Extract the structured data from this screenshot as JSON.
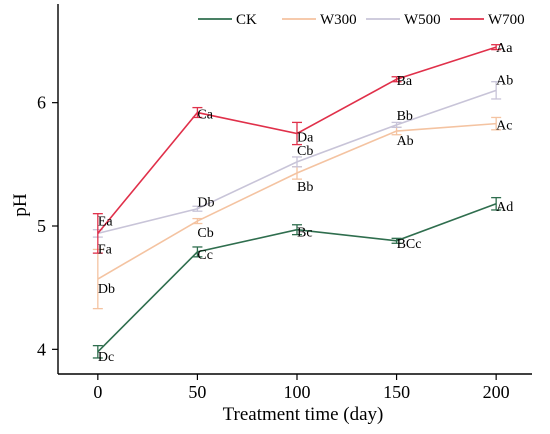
{
  "chart_data": {
    "type": "line",
    "title": "",
    "xlabel": "Treatment time (day)",
    "ylabel": "pH",
    "x": [
      0,
      50,
      100,
      150,
      200
    ],
    "xlim": [
      -20,
      218
    ],
    "ylim": [
      3.8,
      6.8
    ],
    "xticks": [
      0,
      50,
      100,
      150,
      200
    ],
    "yticks": [
      4,
      5,
      6
    ],
    "grid": false,
    "legend_position": "top",
    "series": [
      {
        "name": "CK",
        "color": "#2f6e4e",
        "values": [
          3.98,
          4.79,
          4.97,
          4.88,
          5.18
        ],
        "errors": [
          0.05,
          0.04,
          0.04,
          0.02,
          0.05
        ],
        "labels": [
          "Dc",
          "Cc",
          "Bc",
          "BCc",
          "Ad"
        ]
      },
      {
        "name": "W300",
        "color": "#f4c3a1",
        "values": [
          4.57,
          5.04,
          5.43,
          5.77,
          5.83
        ],
        "errors": [
          0.24,
          0.02,
          0.05,
          0.03,
          0.05
        ],
        "labels": [
          "Db",
          "Cb",
          "Bb",
          "Ab",
          "Ac"
        ]
      },
      {
        "name": "W500",
        "color": "#c8c4d8",
        "values": [
          4.94,
          5.14,
          5.52,
          5.82,
          6.1
        ],
        "errors": [
          0.03,
          0.02,
          0.04,
          0.02,
          0.07
        ],
        "labels": [
          "Fa",
          "Db",
          "Cb",
          "Bb",
          "Ab"
        ]
      },
      {
        "name": "W700",
        "color": "#e0304a",
        "values": [
          4.94,
          5.92,
          5.75,
          6.19,
          6.45
        ],
        "errors": [
          0.16,
          0.04,
          0.09,
          0.02,
          0.02
        ],
        "labels": [
          "Ea",
          "Ca",
          "Da",
          "Ba",
          "Aa"
        ]
      }
    ]
  }
}
